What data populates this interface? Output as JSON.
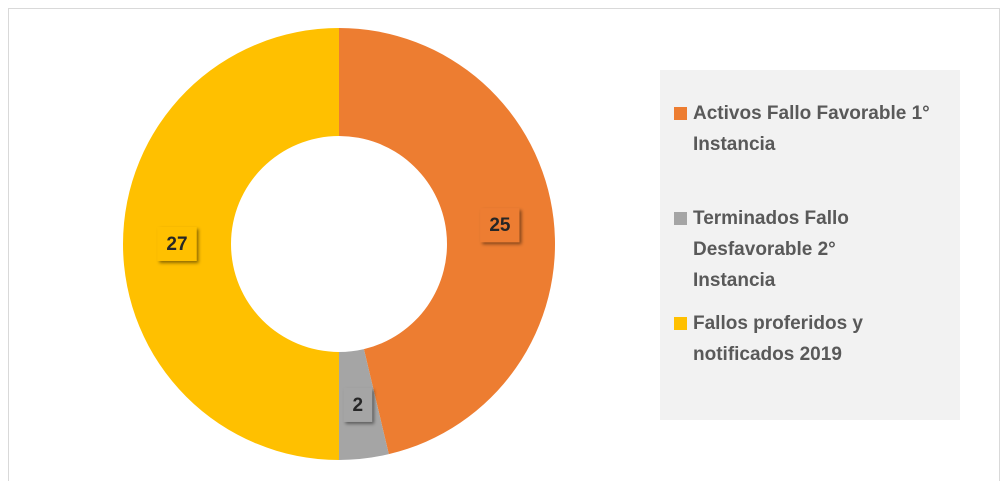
{
  "chart_data": {
    "type": "donut",
    "categories": [
      "Activos Fallo Favorable 1° Instancia",
      "Terminados Fallo Desfavorable 2° Instancia",
      "Fallos proferidos y notificados 2019"
    ],
    "values": [
      25,
      2,
      27
    ],
    "colors": [
      "#ed7d31",
      "#a5a5a5",
      "#ffc000"
    ],
    "legend": "right"
  }
}
